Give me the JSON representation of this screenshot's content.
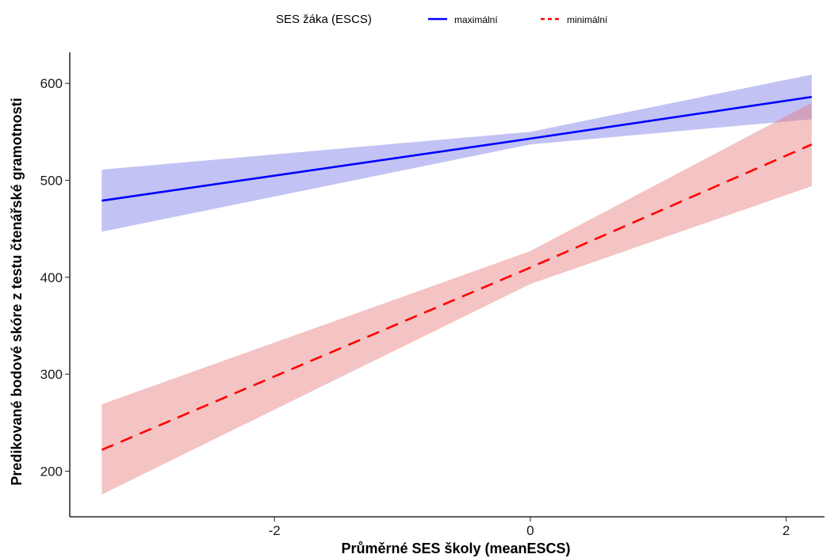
{
  "chart_data": {
    "type": "line",
    "xlabel": "Průměrné SES školy (meanESCS)",
    "ylabel": "Predikované bodové skóre z testu čtenářské gramotnosti",
    "xlim": [
      -3.6,
      2.3
    ],
    "ylim": [
      153,
      632
    ],
    "x_ticks": [
      -2,
      0,
      2
    ],
    "x_tick_labels": [
      "-2",
      "0",
      "2"
    ],
    "y_ticks": [
      200,
      300,
      400,
      500,
      600
    ],
    "y_tick_labels": [
      "200",
      "300",
      "400",
      "500",
      "600"
    ],
    "grid": false,
    "legend": {
      "title": "SES žáka (ESCS)",
      "placement": "top",
      "items": [
        {
          "label": "maximální",
          "color": "#0000ff",
          "dash": "solid"
        },
        {
          "label": "minimální",
          "color": "#ff0000",
          "dash": "dashed"
        }
      ]
    },
    "series": [
      {
        "name": "maximální",
        "color": "#0000ff",
        "band_color": "#7777e6",
        "dash": "solid",
        "x": [
          -3.35,
          0,
          2.2
        ],
        "y": [
          479,
          543,
          586
        ],
        "lower": [
          447,
          537,
          563
        ],
        "upper": [
          511,
          550,
          609
        ]
      },
      {
        "name": "minimální",
        "color": "#ff0000",
        "band_color": "#e67a7a",
        "dash": "dashed",
        "x": [
          -3.35,
          0,
          2.2
        ],
        "y": [
          222,
          410,
          537
        ],
        "lower": [
          176,
          393,
          494
        ],
        "upper": [
          269,
          427,
          580
        ]
      }
    ]
  }
}
